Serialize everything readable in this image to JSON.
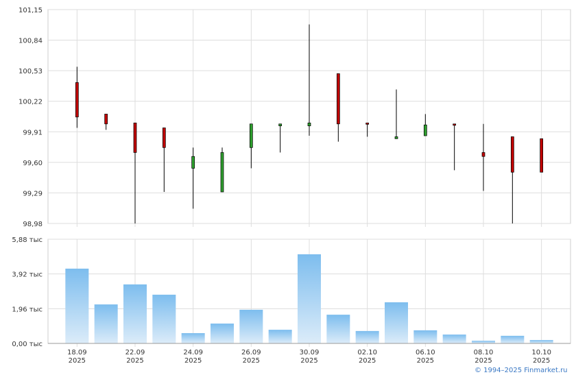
{
  "chart_data": [
    {
      "type": "candlestick",
      "open": [
        100.41,
        100.09,
        100.0,
        99.95,
        99.54,
        99.3,
        99.75,
        99.97,
        99.97,
        100.5,
        100.0,
        99.84,
        99.87,
        99.99,
        99.7,
        99.86,
        99.84
      ],
      "high": [
        100.57,
        100.09,
        100.0,
        99.95,
        99.75,
        99.75,
        99.99,
        99.99,
        101.0,
        100.5,
        100.0,
        100.34,
        100.09,
        99.99,
        99.99,
        99.86,
        99.84
      ],
      "low": [
        99.95,
        99.93,
        98.98,
        99.3,
        99.13,
        99.3,
        99.54,
        99.7,
        99.87,
        99.81,
        99.86,
        99.84,
        99.87,
        99.52,
        99.31,
        98.98,
        99.5
      ],
      "close": [
        100.06,
        99.99,
        99.7,
        99.75,
        99.66,
        99.7,
        99.99,
        99.99,
        100.0,
        99.99,
        99.99,
        99.86,
        99.98,
        99.98,
        99.66,
        99.5,
        99.5
      ],
      "up_color": "#2e9e2e",
      "down_color": "#c00000",
      "ylim": [
        98.98,
        101.15
      ],
      "yticks": [
        {
          "value": 98.98,
          "label": "98,98"
        },
        {
          "value": 99.29,
          "label": "99,29"
        },
        {
          "value": 99.6,
          "label": "99,60"
        },
        {
          "value": 99.91,
          "label": "99,91"
        },
        {
          "value": 100.22,
          "label": "100,22"
        },
        {
          "value": 100.53,
          "label": "100,53"
        },
        {
          "value": 100.84,
          "label": "100,84"
        },
        {
          "value": 101.15,
          "label": "101,15"
        }
      ],
      "grid": true
    },
    {
      "type": "bar",
      "categories": [
        "18.09",
        null,
        "22.09",
        null,
        "24.09",
        null,
        "26.09",
        null,
        "30.09",
        null,
        "02.10",
        null,
        "06.10",
        null,
        "08.10",
        null,
        "10.10"
      ],
      "category_year": "2025",
      "values": [
        4.22,
        2.2,
        3.33,
        2.75,
        0.58,
        1.12,
        1.9,
        0.77,
        5.03,
        1.62,
        0.7,
        2.32,
        0.74,
        0.5,
        0.15,
        0.43,
        0.19
      ],
      "color": "#7dbdee",
      "ylim": [
        0,
        5.88
      ],
      "yticks": [
        {
          "value": 0,
          "label": "0,00 тыс"
        },
        {
          "value": 1.96,
          "label": "1,96 тыс"
        },
        {
          "value": 3.92,
          "label": "3,92 тыс"
        },
        {
          "value": 5.88,
          "label": "5,88 тыс"
        }
      ],
      "grid": true
    }
  ],
  "footer": "© 1994–2025 Finmarket.ru"
}
